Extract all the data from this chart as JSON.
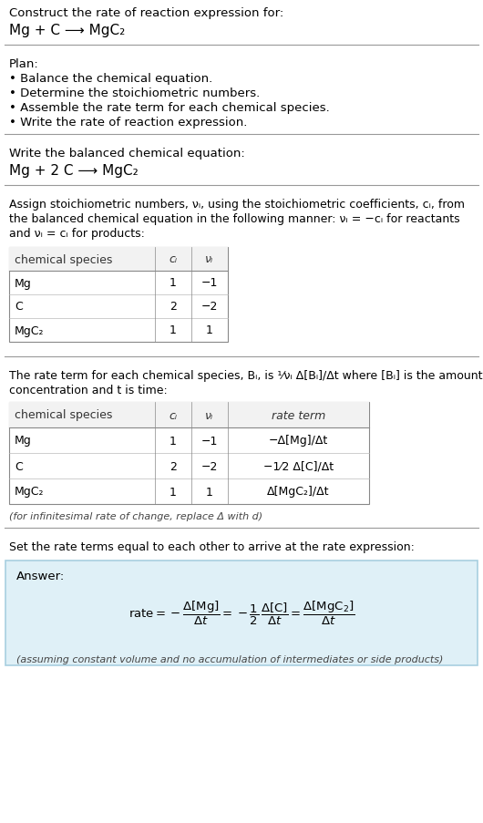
{
  "bg_color": "#ffffff",
  "answer_box_color": "#dff0f7",
  "answer_box_edge": "#a8cfe0",
  "text_color": "#000000",
  "fig_width": 5.3,
  "fig_height": 9.04,
  "dpi": 100,
  "section1": {
    "title": "Construct the rate of reaction expression for:",
    "reaction": "Mg + C ⟶ MgC₂"
  },
  "section2": {
    "title": "Plan:",
    "bullets": [
      "• Balance the chemical equation.",
      "• Determine the stoichiometric numbers.",
      "• Assemble the rate term for each chemical species.",
      "• Write the rate of reaction expression."
    ]
  },
  "section3": {
    "title": "Write the balanced chemical equation:",
    "equation": "Mg + 2 C ⟶ MgC₂"
  },
  "section4": {
    "intro_lines": [
      "Assign stoichiometric numbers, νᵢ, using the stoichiometric coefficients, cᵢ, from",
      "the balanced chemical equation in the following manner: νᵢ = −cᵢ for reactants",
      "and νᵢ = cᵢ for products:"
    ],
    "table1_headers": [
      "chemical species",
      "cᵢ",
      "νᵢ"
    ],
    "table1_rows": [
      [
        "Mg",
        "1",
        "−1"
      ],
      [
        "C",
        "2",
        "−2"
      ],
      [
        "MgC₂",
        "1",
        "1"
      ]
    ]
  },
  "section5": {
    "intro_lines": [
      "The rate term for each chemical species, Bᵢ, is ¹⁄νᵢ Δ[Bᵢ]/Δt where [Bᵢ] is the amount",
      "concentration and t is time:"
    ],
    "table2_headers": [
      "chemical species",
      "cᵢ",
      "νᵢ",
      "rate term"
    ],
    "table2_rows": [
      [
        "Mg",
        "1",
        "−1",
        "−Δ[Mg]/Δt"
      ],
      [
        "C",
        "2",
        "−2",
        "−1⁄2 Δ[C]/Δt"
      ],
      [
        "MgC₂",
        "1",
        "1",
        "Δ[MgC₂]/Δt"
      ]
    ],
    "footnote": "(for infinitesimal rate of change, replace Δ with d)"
  },
  "section6": {
    "intro": "Set the rate terms equal to each other to arrive at the rate expression:",
    "answer_label": "Answer:"
  }
}
